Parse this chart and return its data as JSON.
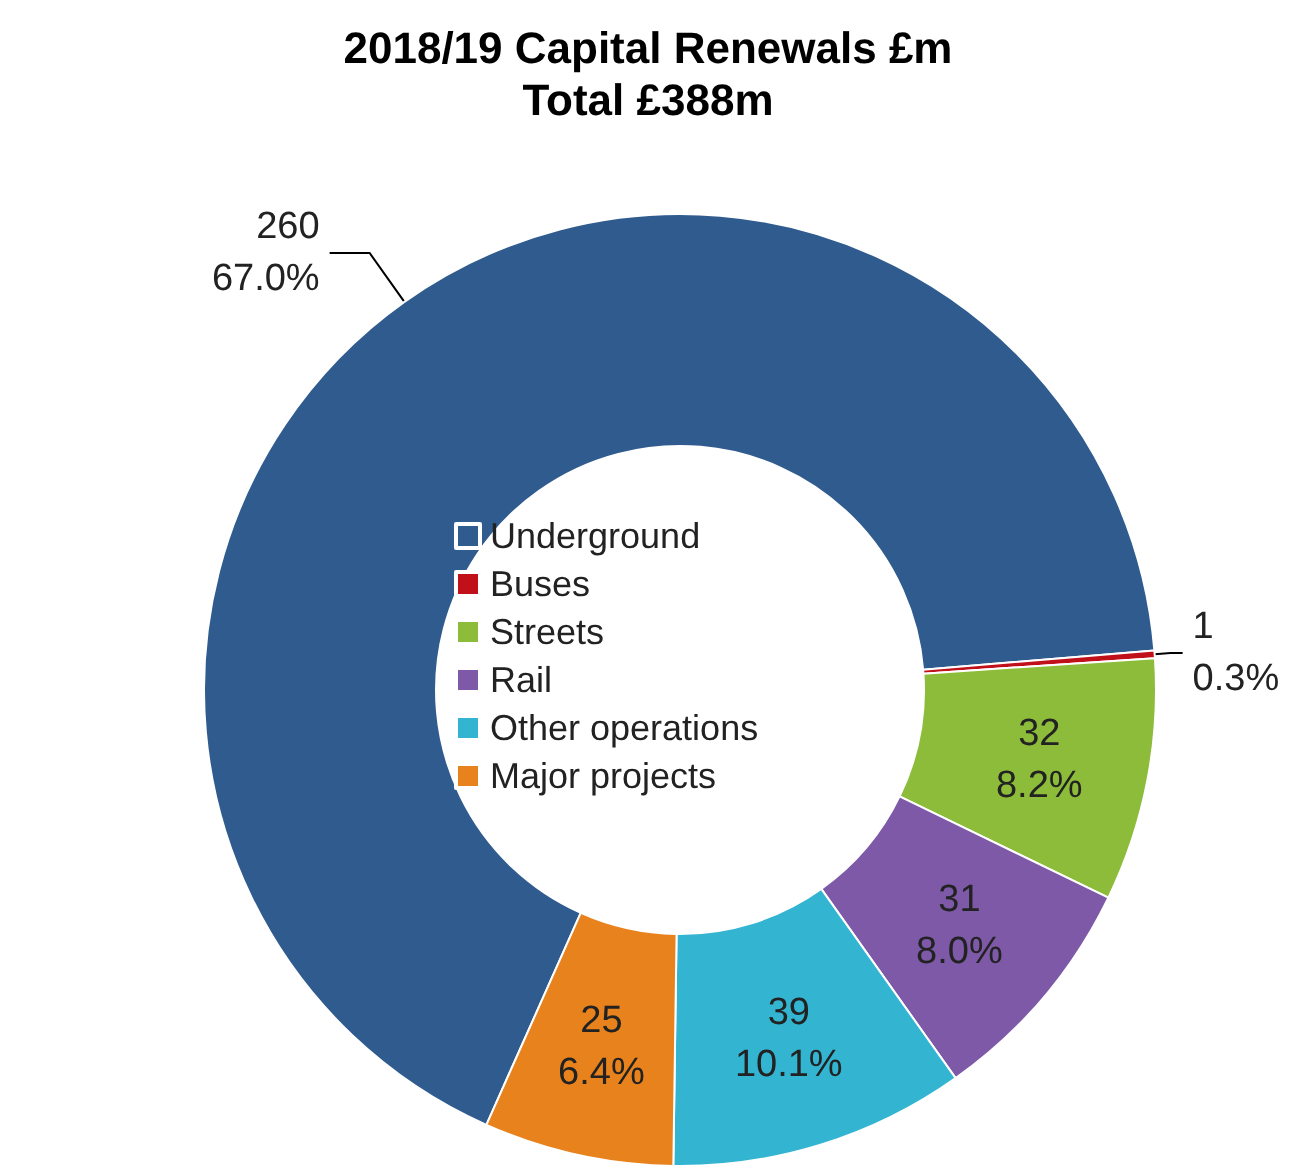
{
  "chart_data": {
    "type": "donut",
    "title": "2018/19 Capital Renewals £m",
    "subtitle": "Total £388m",
    "categories": [
      "Underground",
      "Buses",
      "Streets",
      "Rail",
      "Other operations",
      "Major projects"
    ],
    "values": [
      260,
      1,
      32,
      31,
      39,
      25
    ],
    "colors": [
      "#2f5b8e",
      "#c0101a",
      "#8cbc3a",
      "#7d59a8",
      "#33b5d2",
      "#e8821c"
    ],
    "value_labels": [
      "260\n67.0%",
      "1\n0.3%",
      "32\n8.2%",
      "31\n8.0%",
      "39\n10.1%",
      "25\n6.4%"
    ],
    "legend": "center"
  }
}
